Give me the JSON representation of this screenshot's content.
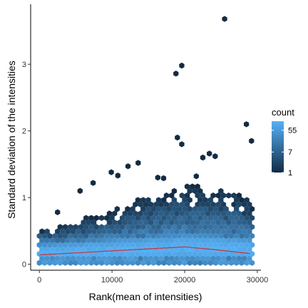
{
  "chart_data": {
    "type": "heatmap",
    "subtype": "hexbin",
    "xlabel": "Rank(mean of intensities)",
    "ylabel": "Standard deviation of the intensities",
    "xlim": [
      -1200,
      30500
    ],
    "ylim": [
      -0.09,
      3.9
    ],
    "x_ticks": [
      0,
      10000,
      20000,
      30000
    ],
    "x_tick_labels": [
      "0",
      "10000",
      "20000",
      "30000"
    ],
    "y_ticks": [
      0,
      1,
      2,
      3
    ],
    "y_tick_labels": [
      "0",
      "1",
      "2",
      "3"
    ],
    "grid": false,
    "legend": {
      "title": "count",
      "position": "right",
      "breaks": [
        1,
        7,
        55
      ],
      "labels": [
        "1",
        "7",
        "55"
      ],
      "max_count": 130,
      "color_low": "#132B43",
      "color_high": "#56B1F7"
    },
    "density_band": {
      "x_range": [
        0,
        29500
      ],
      "upper_edge": [
        [
          0,
          0.55
        ],
        [
          3000,
          0.6
        ],
        [
          8000,
          0.75
        ],
        [
          12000,
          0.9
        ],
        [
          15000,
          1.05
        ],
        [
          18000,
          1.15
        ],
        [
          20500,
          1.2
        ],
        [
          24000,
          1.15
        ],
        [
          27000,
          1.1
        ],
        [
          29500,
          0.95
        ]
      ],
      "core_top": [
        [
          0,
          0.3
        ],
        [
          5000,
          0.33
        ],
        [
          10000,
          0.38
        ],
        [
          15000,
          0.42
        ],
        [
          20000,
          0.45
        ],
        [
          25000,
          0.43
        ],
        [
          29500,
          0.38
        ]
      ],
      "lower_edge": [
        [
          0,
          0.02
        ],
        [
          10000,
          0.02
        ],
        [
          20000,
          0.03
        ],
        [
          29500,
          0.05
        ]
      ]
    },
    "outliers": [
      {
        "x": 25500,
        "y": 3.68
      },
      {
        "x": 19600,
        "y": 2.98
      },
      {
        "x": 18800,
        "y": 2.86
      },
      {
        "x": 28500,
        "y": 2.1
      },
      {
        "x": 29200,
        "y": 1.85
      },
      {
        "x": 19000,
        "y": 1.9
      },
      {
        "x": 19600,
        "y": 1.8
      },
      {
        "x": 22500,
        "y": 1.6
      },
      {
        "x": 23400,
        "y": 1.66
      },
      {
        "x": 24200,
        "y": 1.62
      },
      {
        "x": 13600,
        "y": 1.52
      },
      {
        "x": 12200,
        "y": 1.47
      },
      {
        "x": 9900,
        "y": 1.38
      },
      {
        "x": 10800,
        "y": 1.33
      },
      {
        "x": 16300,
        "y": 1.3
      },
      {
        "x": 17100,
        "y": 1.29
      },
      {
        "x": 21600,
        "y": 1.32
      },
      {
        "x": 7400,
        "y": 1.22
      },
      {
        "x": 5600,
        "y": 1.1
      },
      {
        "x": 2500,
        "y": 0.78
      }
    ],
    "trend_line": {
      "color": "#cc3333",
      "x": [
        0,
        5000,
        10000,
        15000,
        20000,
        24000,
        29000
      ],
      "y": [
        0.14,
        0.17,
        0.2,
        0.23,
        0.26,
        0.22,
        0.16
      ]
    }
  }
}
